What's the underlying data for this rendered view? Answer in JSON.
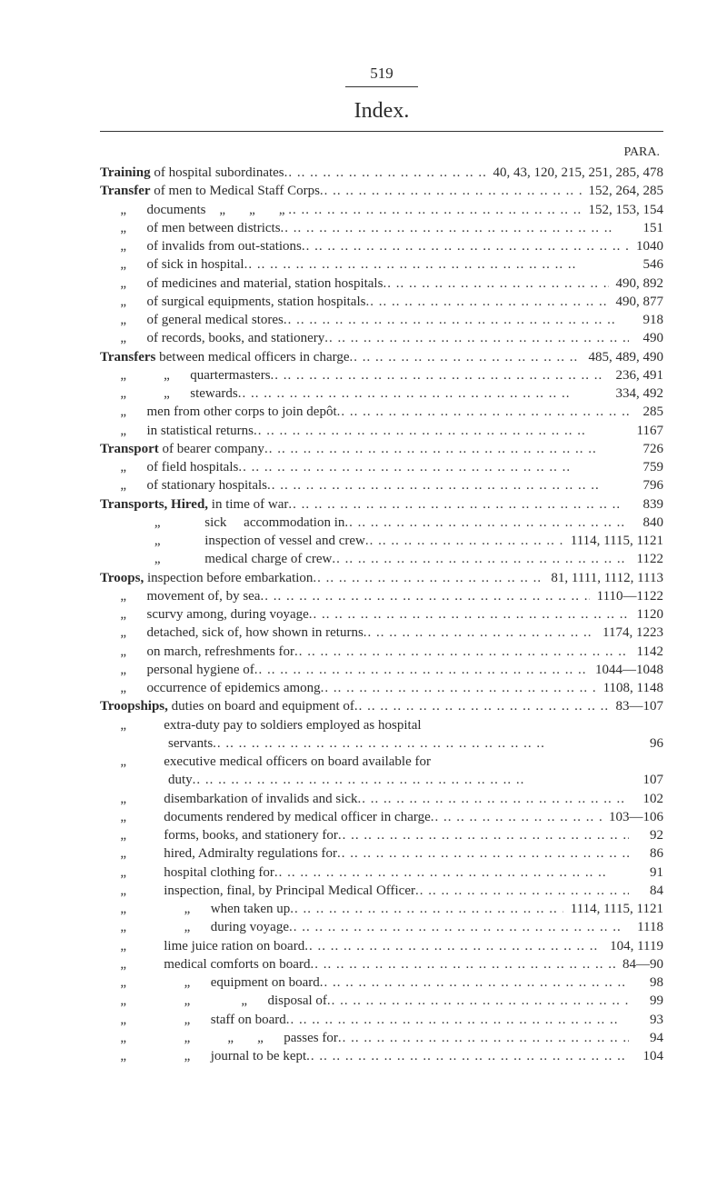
{
  "page_number": "519",
  "heading": "Index.",
  "para_label": "PARA.",
  "entries": [
    {
      "text_html": "<span class='bold'>Training</span> of hospital subordinates",
      "num": "40, 43, 120, 215, 251, 285, 478"
    },
    {
      "text_html": "<span class='bold'>Transfer</span> of men to Medical Staff Corps",
      "num": "152, 264, 285"
    },
    {
      "text_html": "&nbsp;&nbsp;&nbsp;&nbsp;&nbsp;<span class='ditto'>„</span>&nbsp;&nbsp;&nbsp;&nbsp;&nbsp;documents&nbsp;&nbsp;&nbsp;<span class='ditto'>„</span>&nbsp;&nbsp;&nbsp;&nbsp;&nbsp;<span class='ditto'>„</span>&nbsp;&nbsp;&nbsp;&nbsp;&nbsp;<span class='ditto'>„</span>",
      "num": "152, 153, 154"
    },
    {
      "text_html": "&nbsp;&nbsp;&nbsp;&nbsp;&nbsp;<span class='ditto'>„</span>&nbsp;&nbsp;&nbsp;&nbsp;&nbsp;of men between districts",
      "num": "151"
    },
    {
      "text_html": "&nbsp;&nbsp;&nbsp;&nbsp;&nbsp;<span class='ditto'>„</span>&nbsp;&nbsp;&nbsp;&nbsp;&nbsp;of invalids from out-stations",
      "num": "1040"
    },
    {
      "text_html": "&nbsp;&nbsp;&nbsp;&nbsp;&nbsp;<span class='ditto'>„</span>&nbsp;&nbsp;&nbsp;&nbsp;&nbsp;of sick in hospital",
      "num": "546"
    },
    {
      "text_html": "&nbsp;&nbsp;&nbsp;&nbsp;&nbsp;<span class='ditto'>„</span>&nbsp;&nbsp;&nbsp;&nbsp;&nbsp;of medicines and material, station hospitals",
      "num": "490, 892"
    },
    {
      "text_html": "&nbsp;&nbsp;&nbsp;&nbsp;&nbsp;<span class='ditto'>„</span>&nbsp;&nbsp;&nbsp;&nbsp;&nbsp;of surgical equipments, station hospitals",
      "num": "490, 877"
    },
    {
      "text_html": "&nbsp;&nbsp;&nbsp;&nbsp;&nbsp;<span class='ditto'>„</span>&nbsp;&nbsp;&nbsp;&nbsp;&nbsp;of general medical stores",
      "num": "918"
    },
    {
      "text_html": "&nbsp;&nbsp;&nbsp;&nbsp;&nbsp;<span class='ditto'>„</span>&nbsp;&nbsp;&nbsp;&nbsp;&nbsp;of records, books, and stationery",
      "num": "490"
    },
    {
      "text_html": "<span class='bold'>Transfers</span> between medical officers in charge",
      "num": "485, 489, 490"
    },
    {
      "text_html": "&nbsp;&nbsp;&nbsp;&nbsp;&nbsp;<span class='ditto'>„</span>&nbsp;&nbsp;&nbsp;&nbsp;&nbsp;&nbsp;&nbsp;&nbsp;&nbsp;<span class='ditto'>„</span>&nbsp;&nbsp;&nbsp;&nbsp;&nbsp;quartermasters",
      "num": "236, 491"
    },
    {
      "text_html": "&nbsp;&nbsp;&nbsp;&nbsp;&nbsp;<span class='ditto'>„</span>&nbsp;&nbsp;&nbsp;&nbsp;&nbsp;&nbsp;&nbsp;&nbsp;&nbsp;<span class='ditto'>„</span>&nbsp;&nbsp;&nbsp;&nbsp;&nbsp;stewards",
      "num": "334, 492"
    },
    {
      "text_html": "&nbsp;&nbsp;&nbsp;&nbsp;&nbsp;<span class='ditto'>„</span>&nbsp;&nbsp;&nbsp;&nbsp;&nbsp;men from other corps to join depôt",
      "num": "285"
    },
    {
      "text_html": "&nbsp;&nbsp;&nbsp;&nbsp;&nbsp;<span class='ditto'>„</span>&nbsp;&nbsp;&nbsp;&nbsp;&nbsp;in statistical returns",
      "num": "1167"
    },
    {
      "text_html": "<span class='bold'>Transport</span> of bearer company",
      "num": "726"
    },
    {
      "text_html": "&nbsp;&nbsp;&nbsp;&nbsp;&nbsp;<span class='ditto'>„</span>&nbsp;&nbsp;&nbsp;&nbsp;&nbsp;of field hospitals",
      "num": "759"
    },
    {
      "text_html": "&nbsp;&nbsp;&nbsp;&nbsp;&nbsp;<span class='ditto'>„</span>&nbsp;&nbsp;&nbsp;&nbsp;&nbsp;of stationary hospitals",
      "num": "796"
    },
    {
      "text_html": "<span class='bold'>Transports, Hired,</span> in time of war",
      "num": "839"
    },
    {
      "text_html": "&nbsp;&nbsp;&nbsp;&nbsp;&nbsp;&nbsp;&nbsp;&nbsp;&nbsp;&nbsp;&nbsp;&nbsp;&nbsp;&nbsp;&nbsp;<span class='ditto'>„</span>&nbsp;&nbsp;&nbsp;&nbsp;&nbsp;&nbsp;&nbsp;&nbsp;&nbsp;&nbsp;&nbsp;&nbsp;sick&nbsp;&nbsp;&nbsp;&nbsp;&nbsp;accommodation in",
      "num": "840"
    },
    {
      "text_html": "&nbsp;&nbsp;&nbsp;&nbsp;&nbsp;&nbsp;&nbsp;&nbsp;&nbsp;&nbsp;&nbsp;&nbsp;&nbsp;&nbsp;&nbsp;<span class='ditto'>„</span>&nbsp;&nbsp;&nbsp;&nbsp;&nbsp;&nbsp;&nbsp;&nbsp;&nbsp;&nbsp;&nbsp;&nbsp;inspection of vessel and crew",
      "num": "1114, 1115, 1121"
    },
    {
      "text_html": "&nbsp;&nbsp;&nbsp;&nbsp;&nbsp;&nbsp;&nbsp;&nbsp;&nbsp;&nbsp;&nbsp;&nbsp;&nbsp;&nbsp;&nbsp;<span class='ditto'>„</span>&nbsp;&nbsp;&nbsp;&nbsp;&nbsp;&nbsp;&nbsp;&nbsp;&nbsp;&nbsp;&nbsp;&nbsp;medical charge of crew",
      "num": "1122"
    },
    {
      "text_html": "<span class='bold'>Troops,</span> inspection before embarkation",
      "num": "81, 1111, 1112, 1113"
    },
    {
      "text_html": "&nbsp;&nbsp;&nbsp;&nbsp;&nbsp;<span class='ditto'>„</span>&nbsp;&nbsp;&nbsp;&nbsp;&nbsp;movement of, by sea",
      "num": "1110—1122"
    },
    {
      "text_html": "&nbsp;&nbsp;&nbsp;&nbsp;&nbsp;<span class='ditto'>„</span>&nbsp;&nbsp;&nbsp;&nbsp;&nbsp;scurvy among, during voyage",
      "num": "1120"
    },
    {
      "text_html": "&nbsp;&nbsp;&nbsp;&nbsp;&nbsp;<span class='ditto'>„</span>&nbsp;&nbsp;&nbsp;&nbsp;&nbsp;detached, sick of, how shown in returns",
      "num": "1174, 1223"
    },
    {
      "text_html": "&nbsp;&nbsp;&nbsp;&nbsp;&nbsp;<span class='ditto'>„</span>&nbsp;&nbsp;&nbsp;&nbsp;&nbsp;on march, refreshments for",
      "num": "1142"
    },
    {
      "text_html": "&nbsp;&nbsp;&nbsp;&nbsp;&nbsp;<span class='ditto'>„</span>&nbsp;&nbsp;&nbsp;&nbsp;&nbsp;personal hygiene of",
      "num": "1044—1048"
    },
    {
      "text_html": "&nbsp;&nbsp;&nbsp;&nbsp;&nbsp;<span class='ditto'>„</span>&nbsp;&nbsp;&nbsp;&nbsp;&nbsp;occurrence of epidemics among",
      "num": "1108, 1148"
    },
    {
      "text_html": "<span class='bold'>Troopships,</span> duties on board and equipment of",
      "num": "83—107"
    },
    {
      "text_html": "&nbsp;&nbsp;&nbsp;&nbsp;&nbsp;<span class='ditto'>„</span>&nbsp;&nbsp;&nbsp;&nbsp;&nbsp;&nbsp;&nbsp;&nbsp;&nbsp;&nbsp;extra-duty pay to soldiers employed as hospital",
      "num": "",
      "nodots": true
    },
    {
      "text_html": "&nbsp;&nbsp;&nbsp;&nbsp;&nbsp;&nbsp;&nbsp;&nbsp;&nbsp;&nbsp;&nbsp;&nbsp;&nbsp;&nbsp;&nbsp;&nbsp;&nbsp;&nbsp;&nbsp;&nbsp;servants",
      "num": "96"
    },
    {
      "text_html": "&nbsp;&nbsp;&nbsp;&nbsp;&nbsp;<span class='ditto'>„</span>&nbsp;&nbsp;&nbsp;&nbsp;&nbsp;&nbsp;&nbsp;&nbsp;&nbsp;&nbsp;executive medical officers on board available for",
      "num": "",
      "nodots": true
    },
    {
      "text_html": "&nbsp;&nbsp;&nbsp;&nbsp;&nbsp;&nbsp;&nbsp;&nbsp;&nbsp;&nbsp;&nbsp;&nbsp;&nbsp;&nbsp;&nbsp;&nbsp;&nbsp;&nbsp;&nbsp;&nbsp;duty",
      "num": "107"
    },
    {
      "text_html": "&nbsp;&nbsp;&nbsp;&nbsp;&nbsp;<span class='ditto'>„</span>&nbsp;&nbsp;&nbsp;&nbsp;&nbsp;&nbsp;&nbsp;&nbsp;&nbsp;&nbsp;disembarkation of invalids and sick",
      "num": "102"
    },
    {
      "text_html": "&nbsp;&nbsp;&nbsp;&nbsp;&nbsp;<span class='ditto'>„</span>&nbsp;&nbsp;&nbsp;&nbsp;&nbsp;&nbsp;&nbsp;&nbsp;&nbsp;&nbsp;documents rendered by medical officer in charge",
      "num": "103—106"
    },
    {
      "text_html": "&nbsp;&nbsp;&nbsp;&nbsp;&nbsp;<span class='ditto'>„</span>&nbsp;&nbsp;&nbsp;&nbsp;&nbsp;&nbsp;&nbsp;&nbsp;&nbsp;&nbsp;forms, books, and stationery for",
      "num": "92"
    },
    {
      "text_html": "&nbsp;&nbsp;&nbsp;&nbsp;&nbsp;<span class='ditto'>„</span>&nbsp;&nbsp;&nbsp;&nbsp;&nbsp;&nbsp;&nbsp;&nbsp;&nbsp;&nbsp;hired, Admiralty regulations for",
      "num": "86"
    },
    {
      "text_html": "&nbsp;&nbsp;&nbsp;&nbsp;&nbsp;<span class='ditto'>„</span>&nbsp;&nbsp;&nbsp;&nbsp;&nbsp;&nbsp;&nbsp;&nbsp;&nbsp;&nbsp;hospital clothing for",
      "num": "91"
    },
    {
      "text_html": "&nbsp;&nbsp;&nbsp;&nbsp;&nbsp;<span class='ditto'>„</span>&nbsp;&nbsp;&nbsp;&nbsp;&nbsp;&nbsp;&nbsp;&nbsp;&nbsp;&nbsp;inspection, final, by Principal Medical Officer",
      "num": "84"
    },
    {
      "text_html": "&nbsp;&nbsp;&nbsp;&nbsp;&nbsp;<span class='ditto'>„</span>&nbsp;&nbsp;&nbsp;&nbsp;&nbsp;&nbsp;&nbsp;&nbsp;&nbsp;&nbsp;&nbsp;&nbsp;&nbsp;&nbsp;&nbsp;<span class='ditto'>„</span>&nbsp;&nbsp;&nbsp;&nbsp;&nbsp;when taken up",
      "num": "1114, 1115, 1121"
    },
    {
      "text_html": "&nbsp;&nbsp;&nbsp;&nbsp;&nbsp;<span class='ditto'>„</span>&nbsp;&nbsp;&nbsp;&nbsp;&nbsp;&nbsp;&nbsp;&nbsp;&nbsp;&nbsp;&nbsp;&nbsp;&nbsp;&nbsp;&nbsp;<span class='ditto'>„</span>&nbsp;&nbsp;&nbsp;&nbsp;&nbsp;during voyage",
      "num": "1118"
    },
    {
      "text_html": "&nbsp;&nbsp;&nbsp;&nbsp;&nbsp;<span class='ditto'>„</span>&nbsp;&nbsp;&nbsp;&nbsp;&nbsp;&nbsp;&nbsp;&nbsp;&nbsp;&nbsp;lime juice ration on board",
      "num": "104, 1119"
    },
    {
      "text_html": "&nbsp;&nbsp;&nbsp;&nbsp;&nbsp;<span class='ditto'>„</span>&nbsp;&nbsp;&nbsp;&nbsp;&nbsp;&nbsp;&nbsp;&nbsp;&nbsp;&nbsp;medical comforts on board",
      "num": "84—90"
    },
    {
      "text_html": "&nbsp;&nbsp;&nbsp;&nbsp;&nbsp;<span class='ditto'>„</span>&nbsp;&nbsp;&nbsp;&nbsp;&nbsp;&nbsp;&nbsp;&nbsp;&nbsp;&nbsp;&nbsp;&nbsp;&nbsp;&nbsp;&nbsp;<span class='ditto'>„</span>&nbsp;&nbsp;&nbsp;&nbsp;&nbsp;equipment on board",
      "num": "98"
    },
    {
      "text_html": "&nbsp;&nbsp;&nbsp;&nbsp;&nbsp;<span class='ditto'>„</span>&nbsp;&nbsp;&nbsp;&nbsp;&nbsp;&nbsp;&nbsp;&nbsp;&nbsp;&nbsp;&nbsp;&nbsp;&nbsp;&nbsp;&nbsp;<span class='ditto'>„</span>&nbsp;&nbsp;&nbsp;&nbsp;&nbsp;&nbsp;&nbsp;&nbsp;&nbsp;&nbsp;&nbsp;&nbsp;&nbsp;<span class='ditto'>„</span>&nbsp;&nbsp;&nbsp;&nbsp;&nbsp;disposal of",
      "num": "99"
    },
    {
      "text_html": "&nbsp;&nbsp;&nbsp;&nbsp;&nbsp;<span class='ditto'>„</span>&nbsp;&nbsp;&nbsp;&nbsp;&nbsp;&nbsp;&nbsp;&nbsp;&nbsp;&nbsp;&nbsp;&nbsp;&nbsp;&nbsp;&nbsp;<span class='ditto'>„</span>&nbsp;&nbsp;&nbsp;&nbsp;&nbsp;staff on board",
      "num": "93"
    },
    {
      "text_html": "&nbsp;&nbsp;&nbsp;&nbsp;&nbsp;<span class='ditto'>„</span>&nbsp;&nbsp;&nbsp;&nbsp;&nbsp;&nbsp;&nbsp;&nbsp;&nbsp;&nbsp;&nbsp;&nbsp;&nbsp;&nbsp;&nbsp;<span class='ditto'>„</span>&nbsp;&nbsp;&nbsp;&nbsp;&nbsp;&nbsp;&nbsp;&nbsp;&nbsp;<span class='ditto'>„</span>&nbsp;&nbsp;&nbsp;&nbsp;&nbsp;<span class='ditto'>„</span>&nbsp;&nbsp;&nbsp;&nbsp;&nbsp;passes for",
      "num": "94"
    },
    {
      "text_html": "&nbsp;&nbsp;&nbsp;&nbsp;&nbsp;<span class='ditto'>„</span>&nbsp;&nbsp;&nbsp;&nbsp;&nbsp;&nbsp;&nbsp;&nbsp;&nbsp;&nbsp;&nbsp;&nbsp;&nbsp;&nbsp;&nbsp;<span class='ditto'>„</span>&nbsp;&nbsp;&nbsp;&nbsp;&nbsp;journal to be kept",
      "num": "104"
    }
  ]
}
